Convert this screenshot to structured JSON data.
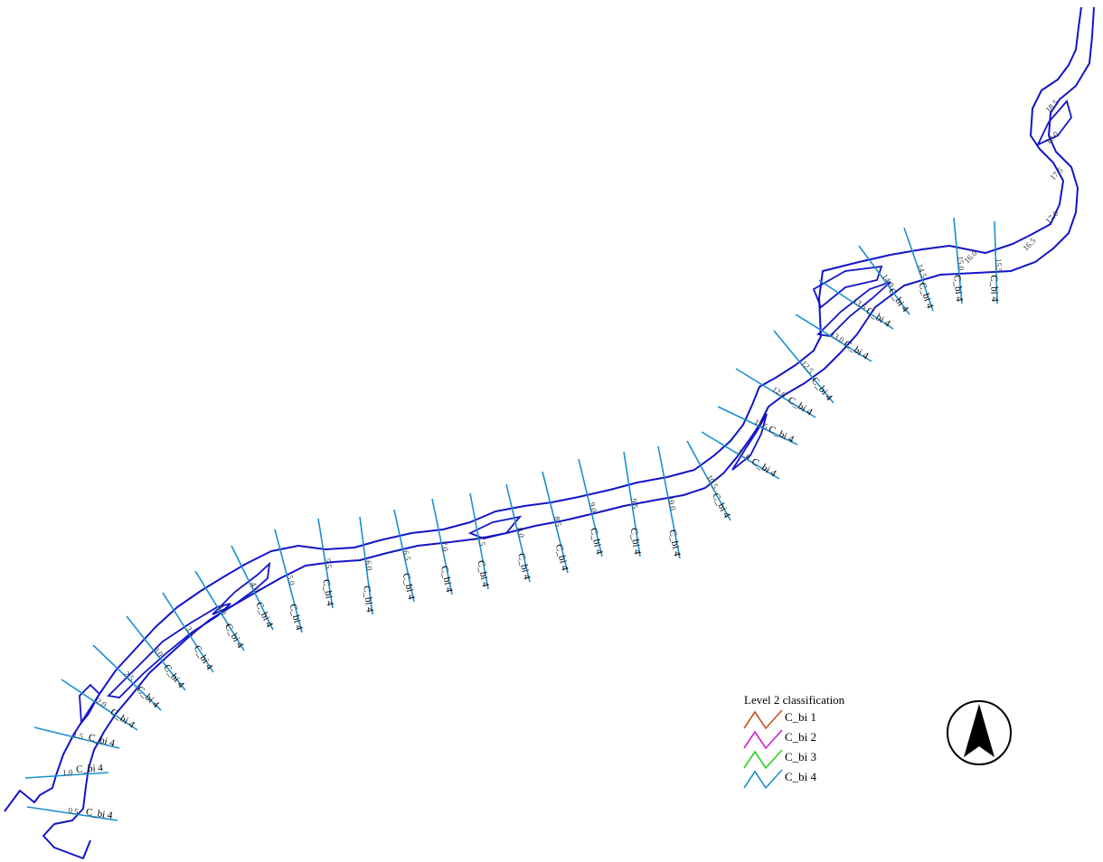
{
  "legend": {
    "title": "Level 2 classification",
    "items": [
      {
        "label": "C_bi 1",
        "color": "#c8501e"
      },
      {
        "label": "C_bi 2",
        "color": "#d21ed2"
      },
      {
        "label": "C_bi 3",
        "color": "#2ad21e"
      },
      {
        "label": "C_bi 4",
        "color": "#1a8fd0"
      }
    ]
  },
  "cross_sections": [
    {
      "class": "C_bi 4",
      "km": "0.5"
    },
    {
      "class": "C_bi 4",
      "km": "1.0"
    },
    {
      "class": "C_bi 4",
      "km": "1.5"
    },
    {
      "class": "C_bi 4",
      "km": "2.0"
    },
    {
      "class": "C_bi 4",
      "km": "2.5"
    },
    {
      "class": "C_bi 4",
      "km": "3.0"
    },
    {
      "class": "C_bi 4",
      "km": "3.5"
    },
    {
      "class": "C_bi 4",
      "km": "4.0"
    },
    {
      "class": "C_bi 4",
      "km": "4.5"
    },
    {
      "class": "C_bi 4",
      "km": "5.0"
    },
    {
      "class": "C_bi 4",
      "km": "5.5"
    },
    {
      "class": "C_bi 4",
      "km": "6.0"
    },
    {
      "class": "C_bi 4",
      "km": "6.5"
    },
    {
      "class": "C_bi 4",
      "km": "7.0"
    },
    {
      "class": "C_bi 4",
      "km": "7.5"
    },
    {
      "class": "C_bi 4",
      "km": "8.0"
    },
    {
      "class": "C_bi 4",
      "km": "8.5"
    },
    {
      "class": "C_bi 4",
      "km": "9.0"
    },
    {
      "class": "C_bi 4",
      "km": "9.5"
    },
    {
      "class": "C_bi 4",
      "km": "10.0"
    },
    {
      "class": "C_bi 4",
      "km": "10.5"
    },
    {
      "class": "C_bi 4",
      "km": "11.0"
    },
    {
      "class": "C_bi 4",
      "km": "11.5"
    },
    {
      "class": "C_bi 4",
      "km": "12.0"
    },
    {
      "class": "C_bi 4",
      "km": "12.5"
    },
    {
      "class": "C_bi 4",
      "km": "13.0"
    },
    {
      "class": "C_bi 4",
      "km": "13.5"
    },
    {
      "class": "C_bi 4",
      "km": "14.0"
    },
    {
      "class": "C_bi 4",
      "km": "14.5"
    },
    {
      "class": "C_bi 4",
      "km": "15.0"
    },
    {
      "class": "C_bi 4",
      "km": "15.5"
    }
  ],
  "upstream_km_labels": [
    "16.0",
    "16.5",
    "17.0",
    "17.5",
    "18.0",
    "18.5"
  ],
  "north_arrow": {
    "icon": "north-arrow-icon"
  }
}
